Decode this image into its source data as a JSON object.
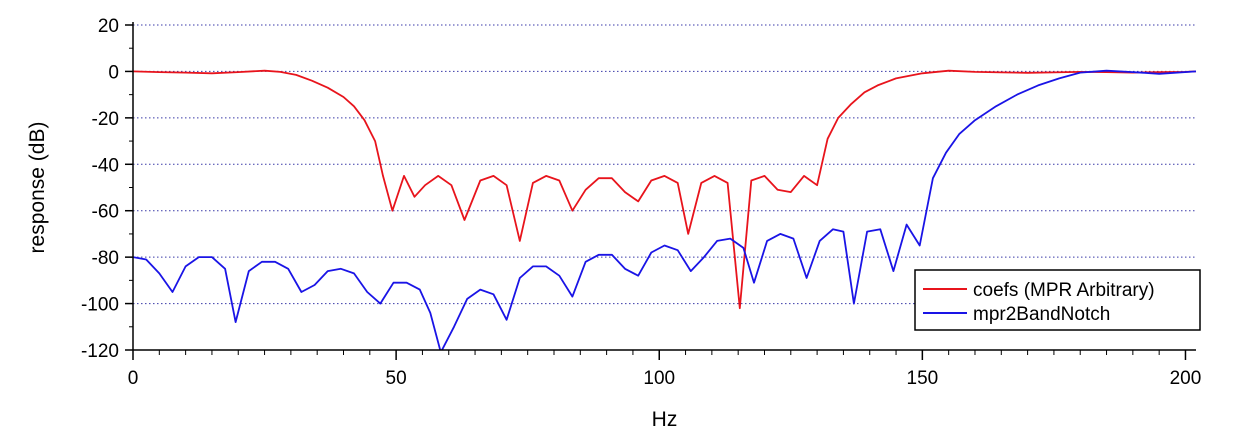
{
  "chart_data": {
    "type": "line",
    "xlabel": "Hz",
    "ylabel": "response (dB)",
    "xlim": [
      0,
      202
    ],
    "ylim": [
      -120,
      20
    ],
    "xticks": [
      0,
      50,
      100,
      150,
      200
    ],
    "yticks": [
      20,
      0,
      -20,
      -40,
      -60,
      -80,
      -100,
      -120
    ],
    "xtick_labels": [
      "0",
      "50",
      "100",
      "150",
      "200"
    ],
    "ytick_labels": [
      "20",
      "0",
      "-20",
      "-40",
      "-60",
      "-80",
      "-100",
      "-120"
    ],
    "grid": "horizontal dotted",
    "legend_position": "bottom-right",
    "series": [
      {
        "name": "coefs (MPR Arbitrary)",
        "color": "#e8141c",
        "x": [
          0,
          5,
          10,
          15,
          20,
          25,
          28,
          31,
          34,
          37,
          40,
          42,
          44,
          46,
          47.5,
          49.3,
          51.5,
          53.5,
          55.5,
          58,
          60.5,
          63,
          66,
          68.5,
          71,
          73.5,
          76,
          78.5,
          81,
          83.5,
          86,
          88.5,
          91,
          93.5,
          96,
          98.5,
          101,
          103.5,
          105.5,
          108,
          110.5,
          113,
          115.3,
          117.5,
          120,
          122.5,
          125,
          127.5,
          130,
          132,
          134,
          136.5,
          139,
          141.5,
          145,
          150,
          155,
          160,
          165,
          170,
          175,
          180,
          185,
          190,
          195,
          200,
          202
        ],
        "y": [
          0,
          -0.3,
          -0.5,
          -0.8,
          -0.3,
          0.3,
          -0.2,
          -1.5,
          -4,
          -7,
          -11,
          -15,
          -21,
          -30,
          -45,
          -60,
          -45,
          -54,
          -49,
          -45,
          -49,
          -64,
          -47,
          -45,
          -49,
          -73,
          -48,
          -45,
          -47,
          -60,
          -51,
          -46,
          -46,
          -52,
          -56,
          -47,
          -45,
          -48,
          -70,
          -48,
          -45,
          -48,
          -102,
          -47,
          -45,
          -51,
          -52,
          -45,
          -49,
          -29,
          -20,
          -14,
          -9,
          -6,
          -3,
          -0.8,
          0.3,
          -0.2,
          -0.4,
          -0.6,
          -0.4,
          -0.2,
          -0.3,
          -0.5,
          -0.3,
          -0.2,
          0
        ]
      },
      {
        "name": "mpr2BandNotch",
        "color": "#1a14e6",
        "x": [
          0,
          2.5,
          5,
          7.5,
          10,
          12.5,
          15,
          17.5,
          19.5,
          22,
          24.5,
          27,
          29.5,
          32,
          34.5,
          37,
          39.5,
          42,
          44.5,
          47,
          49.5,
          52,
          54.5,
          56.5,
          58.5,
          61,
          63.5,
          66,
          68.5,
          71,
          73.5,
          76,
          78.5,
          81,
          83.5,
          86,
          88.5,
          91,
          93.5,
          96,
          98.5,
          101,
          103.5,
          106,
          108.5,
          111,
          113.5,
          116,
          118,
          120.5,
          123,
          125.5,
          128,
          130.5,
          133,
          135,
          137,
          139.5,
          142,
          144.5,
          147,
          149.5,
          152,
          154.5,
          157,
          160,
          164,
          168,
          172,
          176,
          180,
          185,
          190,
          195,
          202
        ],
        "y": [
          -80,
          -81,
          -87,
          -95,
          -84,
          -80,
          -80,
          -85,
          -108,
          -86,
          -82,
          -82,
          -85,
          -95,
          -92,
          -86,
          -85,
          -87,
          -95,
          -100,
          -91,
          -91,
          -94,
          -104,
          -121,
          -110,
          -98,
          -94,
          -96,
          -107,
          -89,
          -84,
          -84,
          -88,
          -97,
          -82,
          -79,
          -79,
          -85,
          -88,
          -78,
          -75,
          -77,
          -86,
          -80,
          -73,
          -72,
          -76,
          -91,
          -73,
          -70,
          -72,
          -89,
          -73,
          -68,
          -69,
          -100,
          -69,
          -68,
          -86,
          -66,
          -75,
          -46,
          -35,
          -27,
          -21,
          -15,
          -10,
          -6,
          -3,
          -0.5,
          0.3,
          -0.3,
          -1,
          0
        ]
      }
    ]
  }
}
